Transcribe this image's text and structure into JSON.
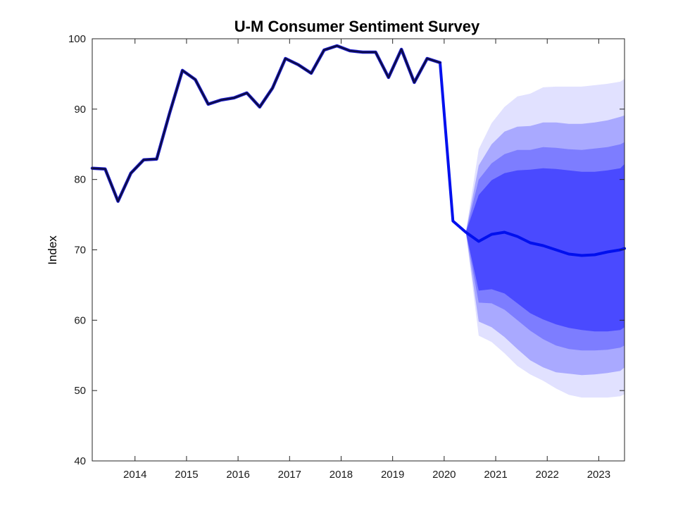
{
  "chart_data": {
    "type": "line",
    "title": "U-M Consumer Sentiment Survey",
    "xlabel": "",
    "ylabel": "Index",
    "xlim": [
      2013.17,
      2023.5
    ],
    "ylim": [
      40,
      100
    ],
    "x_ticks": [
      2014,
      2015,
      2016,
      2017,
      2018,
      2019,
      2020,
      2021,
      2022,
      2023
    ],
    "y_ticks": [
      40,
      50,
      60,
      70,
      80,
      90,
      100
    ],
    "x_tick_labels": [
      "2014",
      "2015",
      "2016",
      "2017",
      "2018",
      "2019",
      "2020",
      "2021",
      "2022",
      "2023"
    ],
    "y_tick_labels": [
      "40",
      "50",
      "60",
      "70",
      "80",
      "90",
      "100"
    ],
    "grid": false,
    "colors": {
      "history": "#0d0d45",
      "forecast": "#0010ee",
      "band_inner": "#4a4aff",
      "band_mid": "#7d7dff",
      "band_outer": "#a9a9ff",
      "band_outermost": "#e1e1ff"
    },
    "history": {
      "x": [
        2013.17,
        2013.42,
        2013.67,
        2013.92,
        2014.17,
        2014.42,
        2014.67,
        2014.92,
        2015.17,
        2015.42,
        2015.67,
        2015.92,
        2016.17,
        2016.42,
        2016.67,
        2016.92,
        2017.17,
        2017.42,
        2017.67,
        2017.92,
        2018.17,
        2018.42,
        2018.67,
        2018.92,
        2019.17,
        2019.42,
        2019.67,
        2019.92
      ],
      "y": [
        81.6,
        81.5,
        76.9,
        80.9,
        82.8,
        82.9,
        89.4,
        95.5,
        94.2,
        90.7,
        91.3,
        91.6,
        92.3,
        90.3,
        93.0,
        97.2,
        96.3,
        95.1,
        98.4,
        99.0,
        98.3,
        98.1,
        98.1,
        94.5,
        98.5,
        93.8,
        97.2,
        96.6
      ]
    },
    "forecast": {
      "x": [
        2019.92,
        2020.17,
        2020.42,
        2020.67,
        2020.92,
        2021.17,
        2021.42,
        2021.67,
        2021.92,
        2022.17,
        2022.42,
        2022.67,
        2022.92,
        2023.17,
        2023.42,
        2023.5
      ],
      "y": [
        96.6,
        74.1,
        72.5,
        71.2,
        72.2,
        72.5,
        71.9,
        71.0,
        70.6,
        70.0,
        69.4,
        69.2,
        69.3,
        69.7,
        70.0,
        70.2
      ]
    },
    "fan_bands": {
      "x": [
        2020.42,
        2020.67,
        2020.92,
        2021.17,
        2021.42,
        2021.67,
        2021.92,
        2022.17,
        2022.42,
        2022.67,
        2022.92,
        2023.17,
        2023.42,
        2023.5
      ],
      "outermost": {
        "upper": [
          72.5,
          84.3,
          88.0,
          90.3,
          91.8,
          92.2,
          93.1,
          93.2,
          93.2,
          93.2,
          93.4,
          93.6,
          93.9,
          94.3
        ],
        "lower": [
          72.5,
          57.8,
          56.9,
          55.3,
          53.5,
          52.3,
          51.4,
          50.3,
          49.4,
          49.0,
          49.0,
          49.0,
          49.2,
          49.5
        ]
      },
      "outer": {
        "upper": [
          72.5,
          82.0,
          85.0,
          86.8,
          87.5,
          87.6,
          88.1,
          88.1,
          87.9,
          87.9,
          88.1,
          88.4,
          88.9,
          89.1
        ],
        "lower": [
          72.5,
          59.8,
          59.0,
          57.6,
          55.9,
          54.3,
          53.3,
          52.6,
          52.4,
          52.2,
          52.3,
          52.5,
          52.8,
          53.3
        ]
      },
      "mid": {
        "upper": [
          72.5,
          80.0,
          82.3,
          83.6,
          84.2,
          84.2,
          84.6,
          84.5,
          84.3,
          84.2,
          84.4,
          84.6,
          85.0,
          85.3
        ],
        "lower": [
          72.5,
          62.5,
          62.4,
          61.5,
          60.0,
          58.5,
          57.3,
          56.4,
          55.9,
          55.7,
          55.7,
          55.8,
          56.1,
          56.4
        ]
      },
      "inner": {
        "upper": [
          72.5,
          77.8,
          79.9,
          80.9,
          81.3,
          81.4,
          81.6,
          81.5,
          81.3,
          81.1,
          81.1,
          81.3,
          81.6,
          82.2
        ],
        "lower": [
          72.5,
          64.2,
          64.4,
          63.8,
          62.4,
          61.0,
          60.1,
          59.4,
          58.9,
          58.6,
          58.4,
          58.4,
          58.6,
          59.0
        ]
      }
    }
  }
}
